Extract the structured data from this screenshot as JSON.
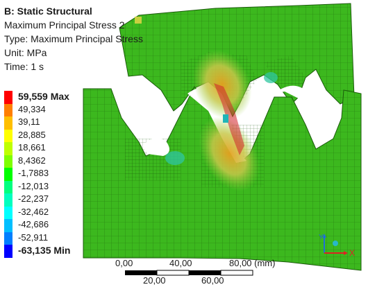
{
  "header": {
    "title": "B: Static Structural",
    "result_name": "Maximum Principal Stress 2",
    "type_line": "Type: Maximum Principal Stress",
    "unit_line": "Unit: MPa",
    "time_line": "Time: 1 s"
  },
  "legend": {
    "colors": [
      "#ff0000",
      "#ff7f00",
      "#ffbf00",
      "#ffff00",
      "#bfff00",
      "#7fff00",
      "#00ff00",
      "#00ff7f",
      "#00ffbf",
      "#00ffff",
      "#00bfff",
      "#007fff",
      "#0000ff"
    ],
    "labels": [
      "59,559 Max",
      "49,334",
      "39,11",
      "28,885",
      "18,661",
      "8,4362",
      "-1,7883",
      "-12,013",
      "-22,237",
      "-32,462",
      "-42,686",
      "-52,911",
      "-63,135 Min"
    ]
  },
  "scale": {
    "top_labels": [
      "0,00",
      "40,00",
      "80,00 (mm)"
    ],
    "bottom_labels": [
      "20,00",
      "60,00"
    ]
  },
  "triad": {
    "x_label": "X",
    "y_label": "Y"
  },
  "model": {
    "base_color": "#3cb81e",
    "mesh_line_color": "#1a5a0a"
  }
}
